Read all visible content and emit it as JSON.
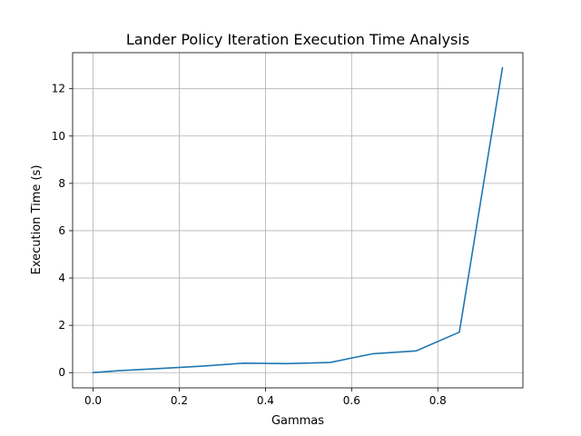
{
  "chart_data": {
    "type": "line",
    "title": "Lander Policy Iteration Execution Time Analysis",
    "xlabel": "Gammas",
    "ylabel": "Execution Time (s)",
    "xlim": [
      -0.0475,
      0.9975
    ],
    "ylim": [
      -0.644,
      13.524
    ],
    "xticks": [
      0.0,
      0.2,
      0.4,
      0.6,
      0.8
    ],
    "xtick_labels": [
      "0.0",
      "0.2",
      "0.4",
      "0.6",
      "0.8"
    ],
    "yticks": [
      0,
      2,
      4,
      6,
      8,
      10,
      12
    ],
    "ytick_labels": [
      "0",
      "2",
      "4",
      "6",
      "8",
      "10",
      "12"
    ],
    "grid": true,
    "series": [
      {
        "color": "#1f77b4",
        "x": [
          0.0,
          0.05,
          0.15,
          0.25,
          0.35,
          0.45,
          0.55,
          0.65,
          0.75,
          0.85,
          0.95
        ],
        "y": [
          0.0,
          0.07,
          0.17,
          0.27,
          0.4,
          0.38,
          0.43,
          0.8,
          0.92,
          1.71,
          12.88
        ]
      }
    ]
  }
}
